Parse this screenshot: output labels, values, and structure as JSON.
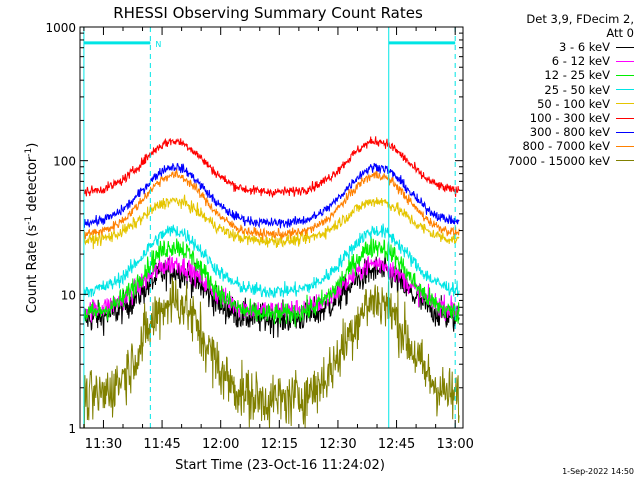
{
  "chart_data": {
    "type": "line",
    "title": "RHESSI Observing Summary Count Rates",
    "xlabel": "Start Time (23-Oct-16 11:24:02)",
    "ylabel_main": "Count Rate (s",
    "ylabel_sup1": "-1",
    "ylabel_mid": " detector",
    "ylabel_sup2": "-1",
    "ylabel_end": ")",
    "y_scale": "log",
    "ylim": [
      1,
      1000
    ],
    "xlim_minutes": [
      684,
      782
    ],
    "x_ticks": [
      {
        "label": "11:30",
        "minute": 690
      },
      {
        "label": "11:45",
        "minute": 705
      },
      {
        "label": "12:00",
        "minute": 720
      },
      {
        "label": "12:15",
        "minute": 735
      },
      {
        "label": "12:30",
        "minute": 750
      },
      {
        "label": "12:45",
        "minute": 765
      },
      {
        "label": "13:00",
        "minute": 780
      }
    ],
    "y_ticks": [
      {
        "label": "1",
        "value": 1
      },
      {
        "label": "10",
        "value": 10
      },
      {
        "label": "100",
        "value": 100
      },
      {
        "label": "1000",
        "value": 1000
      }
    ],
    "vertical_lines_solid_minutes": [
      685,
      763
    ],
    "vertical_lines_dashed_minutes": [
      702,
      780
    ],
    "night_bars": [
      [
        685,
        702
      ],
      [
        763,
        780
      ]
    ],
    "annotation": {
      "text": "N",
      "minute": 702,
      "value": 760
    },
    "x_start_minute": 685,
    "x_end_minute": 781,
    "peaks_minutes": [
      708,
      760
    ],
    "series": [
      {
        "name": "3 - 6 keV",
        "color": "#000000",
        "trough": 6.5,
        "peak": 15,
        "noise": 0.25
      },
      {
        "name": "6 - 12 keV",
        "color": "#ff00ff",
        "trough": 7.5,
        "peak": 17,
        "noise": 0.18
      },
      {
        "name": "12 - 25 keV",
        "color": "#00ee00",
        "trough": 7.0,
        "peak": 23,
        "noise": 0.18
      },
      {
        "name": "25 - 50 keV",
        "color": "#00e5e5",
        "trough": 10.5,
        "peak": 30,
        "noise": 0.12
      },
      {
        "name": "50 - 100 keV",
        "color": "#e5c500",
        "trough": 25,
        "peak": 50,
        "noise": 0.1
      },
      {
        "name": "100 - 300 keV",
        "color": "#ff0000",
        "trough": 58,
        "peak": 140,
        "noise": 0.08
      },
      {
        "name": "300 - 800 keV",
        "color": "#0000ff",
        "trough": 34,
        "peak": 90,
        "noise": 0.08
      },
      {
        "name": "800 - 7000 keV",
        "color": "#ff8000",
        "trough": 28,
        "peak": 78,
        "noise": 0.08
      },
      {
        "name": "7000 - 15000 keV",
        "color": "#808000",
        "trough": 1.6,
        "peak": 9,
        "noise": 0.45
      }
    ]
  },
  "legend": {
    "header_line1": "Det 3,9, FDecim 2,",
    "header_line2": "Att 0"
  },
  "timestamp": "1-Sep-2022 14:50",
  "colors": {
    "night_bar": "#00e5e5",
    "axis": "#000000"
  }
}
